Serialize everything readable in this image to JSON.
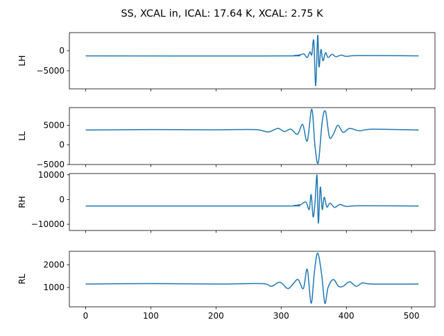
{
  "title": "SS, XCAL in, ICAL: 17.64 K, XCAL: 2.75 K",
  "colors": {
    "line": "#1f77b4",
    "axis": "#000000"
  },
  "chart_data": [
    {
      "type": "line",
      "ylabel": "LH",
      "xlim": [
        -25,
        536
      ],
      "ylim": [
        -9500,
        4500
      ],
      "yticks": [
        0,
        -5000
      ],
      "ytick_labels": [
        "0",
        "−5000"
      ],
      "show_xticklabels": false,
      "baseline": -1300,
      "x": [
        0,
        300,
        320,
        330,
        335,
        340,
        344,
        347,
        350,
        353,
        356,
        358,
        361,
        364,
        368,
        372,
        378,
        384,
        392,
        400,
        420,
        511
      ],
      "values": [
        -1300,
        -1300,
        -1200,
        -1000,
        -800,
        -1700,
        -300,
        -1000,
        2500,
        -8700,
        3800,
        -4000,
        300,
        -2500,
        -500,
        -1700,
        -900,
        -1500,
        -1100,
        -1400,
        -1200,
        -1300
      ]
    },
    {
      "type": "line",
      "ylabel": "LL",
      "xlim": [
        -25,
        536
      ],
      "ylim": [
        -5000,
        9500
      ],
      "yticks": [
        5000,
        0,
        -5000
      ],
      "ytick_labels": [
        "5000",
        "0",
        "−5000"
      ],
      "show_xticklabels": false,
      "baseline": 3800,
      "x": [
        0,
        100,
        200,
        260,
        280,
        295,
        305,
        315,
        325,
        333,
        340,
        347,
        352,
        357,
        363,
        368,
        374,
        380,
        387,
        395,
        405,
        420,
        440,
        511
      ],
      "values": [
        3800,
        3900,
        3850,
        3900,
        3300,
        4200,
        3400,
        4000,
        2700,
        5200,
        1000,
        9100,
        -500,
        -4500,
        6000,
        8500,
        2000,
        2700,
        5000,
        3200,
        4200,
        3600,
        4000,
        3800
      ]
    },
    {
      "type": "line",
      "ylabel": "RH",
      "xlim": [
        -25,
        536
      ],
      "ylim": [
        -12500,
        10500
      ],
      "yticks": [
        10000,
        0,
        -10000
      ],
      "ytick_labels": [
        "10000",
        "0",
        "−10000"
      ],
      "show_xticklabels": false,
      "baseline": -2600,
      "x": [
        0,
        300,
        320,
        330,
        338,
        343,
        346,
        349,
        352,
        355,
        357,
        360,
        363,
        366,
        370,
        375,
        382,
        390,
        400,
        420,
        511
      ],
      "values": [
        -2600,
        -2600,
        -2400,
        -2000,
        -1000,
        -4000,
        2000,
        -7000,
        -1000,
        9800,
        -9500,
        5000,
        -4000,
        1000,
        -3000,
        -1500,
        -3200,
        -2000,
        -2800,
        -2500,
        -2600
      ]
    },
    {
      "type": "line",
      "ylabel": "RL",
      "xlim": [
        -25,
        536
      ],
      "ylim": [
        140,
        2600
      ],
      "yticks": [
        2000,
        1000
      ],
      "ytick_labels": [
        "2000",
        "1000"
      ],
      "show_xticklabels": true,
      "xticks": [
        0,
        100,
        200,
        300,
        400,
        500
      ],
      "xtick_labels": [
        "0",
        "100",
        "200",
        "300",
        "400",
        "500"
      ],
      "baseline": 1150,
      "x": [
        0,
        100,
        200,
        270,
        285,
        298,
        310,
        318,
        326,
        334,
        340,
        346,
        351,
        356,
        362,
        367,
        372,
        380,
        388,
        395,
        405,
        415,
        425,
        440,
        511
      ],
      "values": [
        1150,
        1170,
        1150,
        1170,
        1050,
        1230,
        950,
        1150,
        1350,
        950,
        1800,
        300,
        1700,
        2520,
        1600,
        300,
        1000,
        1350,
        1050,
        1050,
        1250,
        1050,
        1200,
        1150,
        1150
      ]
    }
  ]
}
